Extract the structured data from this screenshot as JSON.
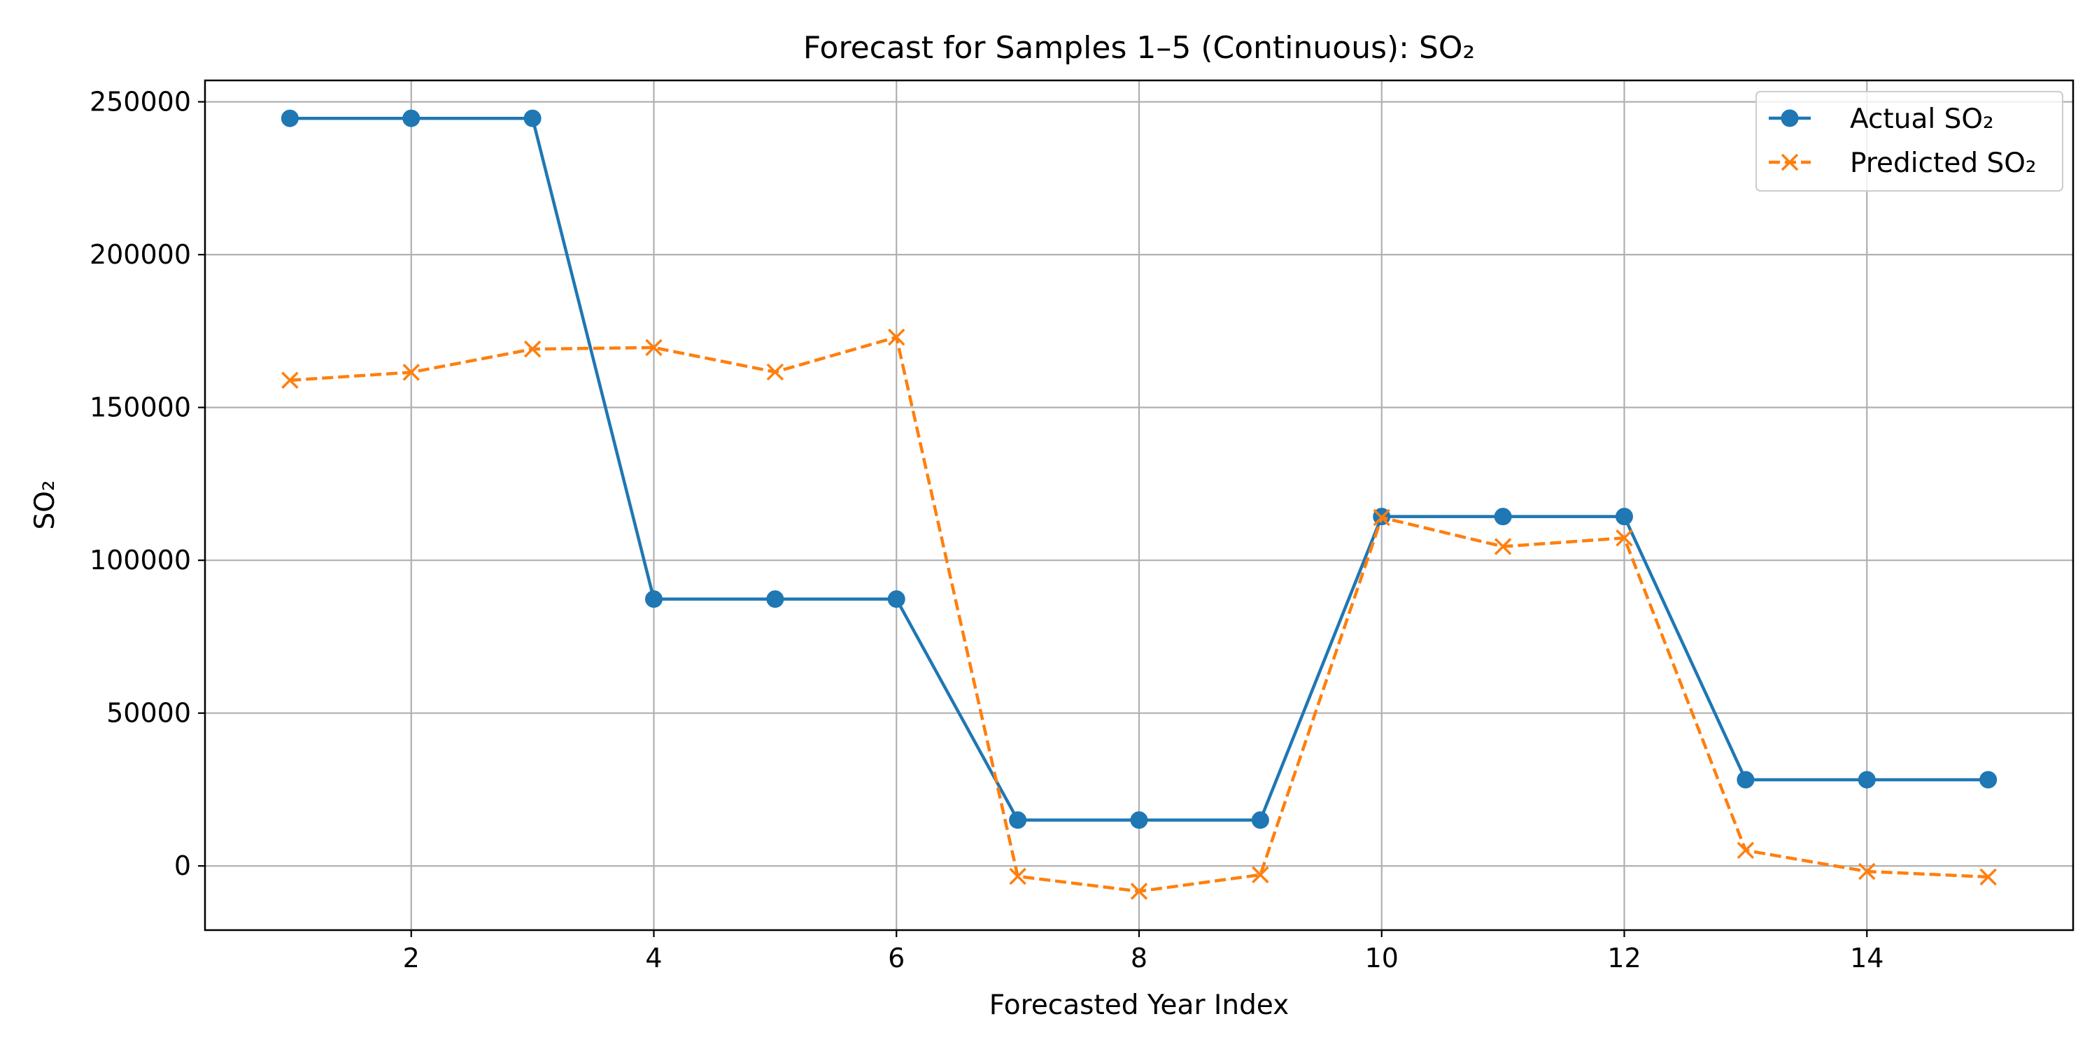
{
  "chart_data": {
    "type": "line",
    "title": "Forecast for Samples 1–5 (Continuous): SO₂",
    "xlabel": "Forecasted Year Index",
    "ylabel": "SO₂",
    "xlim": [
      0.3,
      15.7
    ],
    "ylim": [
      -21000,
      257000
    ],
    "xticks": [
      2,
      4,
      6,
      8,
      10,
      12,
      14
    ],
    "yticks": [
      0,
      50000,
      100000,
      150000,
      200000,
      250000
    ],
    "grid": true,
    "legend_position": "top-right",
    "x": [
      1,
      2,
      3,
      4,
      5,
      6,
      7,
      8,
      9,
      10,
      11,
      12,
      13,
      14,
      15
    ],
    "series": [
      {
        "name": "Actual SO₂",
        "color": "#1f77b4",
        "marker": "circle",
        "line_style": "solid",
        "values": [
          244600,
          244600,
          244600,
          87300,
          87300,
          87300,
          15000,
          15000,
          15000,
          114300,
          114300,
          114300,
          28200,
          28200,
          28200
        ]
      },
      {
        "name": "Predicted SO₂",
        "color": "#ff7f0e",
        "marker": "x",
        "line_style": "dashed",
        "values": [
          158900,
          161500,
          169100,
          169600,
          161600,
          173000,
          -3400,
          -8300,
          -2900,
          114000,
          104500,
          107300,
          5100,
          -1800,
          -3600
        ]
      }
    ]
  }
}
